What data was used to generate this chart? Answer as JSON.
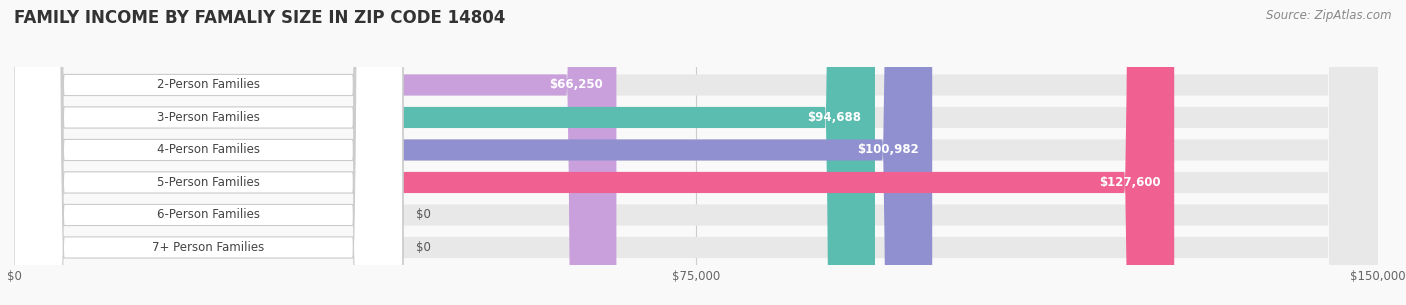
{
  "title": "FAMILY INCOME BY FAMALIY SIZE IN ZIP CODE 14804",
  "source": "Source: ZipAtlas.com",
  "categories": [
    "2-Person Families",
    "3-Person Families",
    "4-Person Families",
    "5-Person Families",
    "6-Person Families",
    "7+ Person Families"
  ],
  "values": [
    66250,
    94688,
    100982,
    127600,
    0,
    0
  ],
  "bar_colors": [
    "#c9a0dc",
    "#5bbcb0",
    "#9090d0",
    "#f06090",
    "#f5c896",
    "#f0a0a8"
  ],
  "bar_bg_color": "#e8e8e8",
  "xlim": [
    0,
    150000
  ],
  "xticks": [
    0,
    75000,
    150000
  ],
  "xtick_labels": [
    "$0",
    "$75,000",
    "$150,000"
  ],
  "bg_color": "#f9f9f9",
  "title_fontsize": 12,
  "label_fontsize": 8.5,
  "value_fontsize": 8.5,
  "source_fontsize": 8.5
}
